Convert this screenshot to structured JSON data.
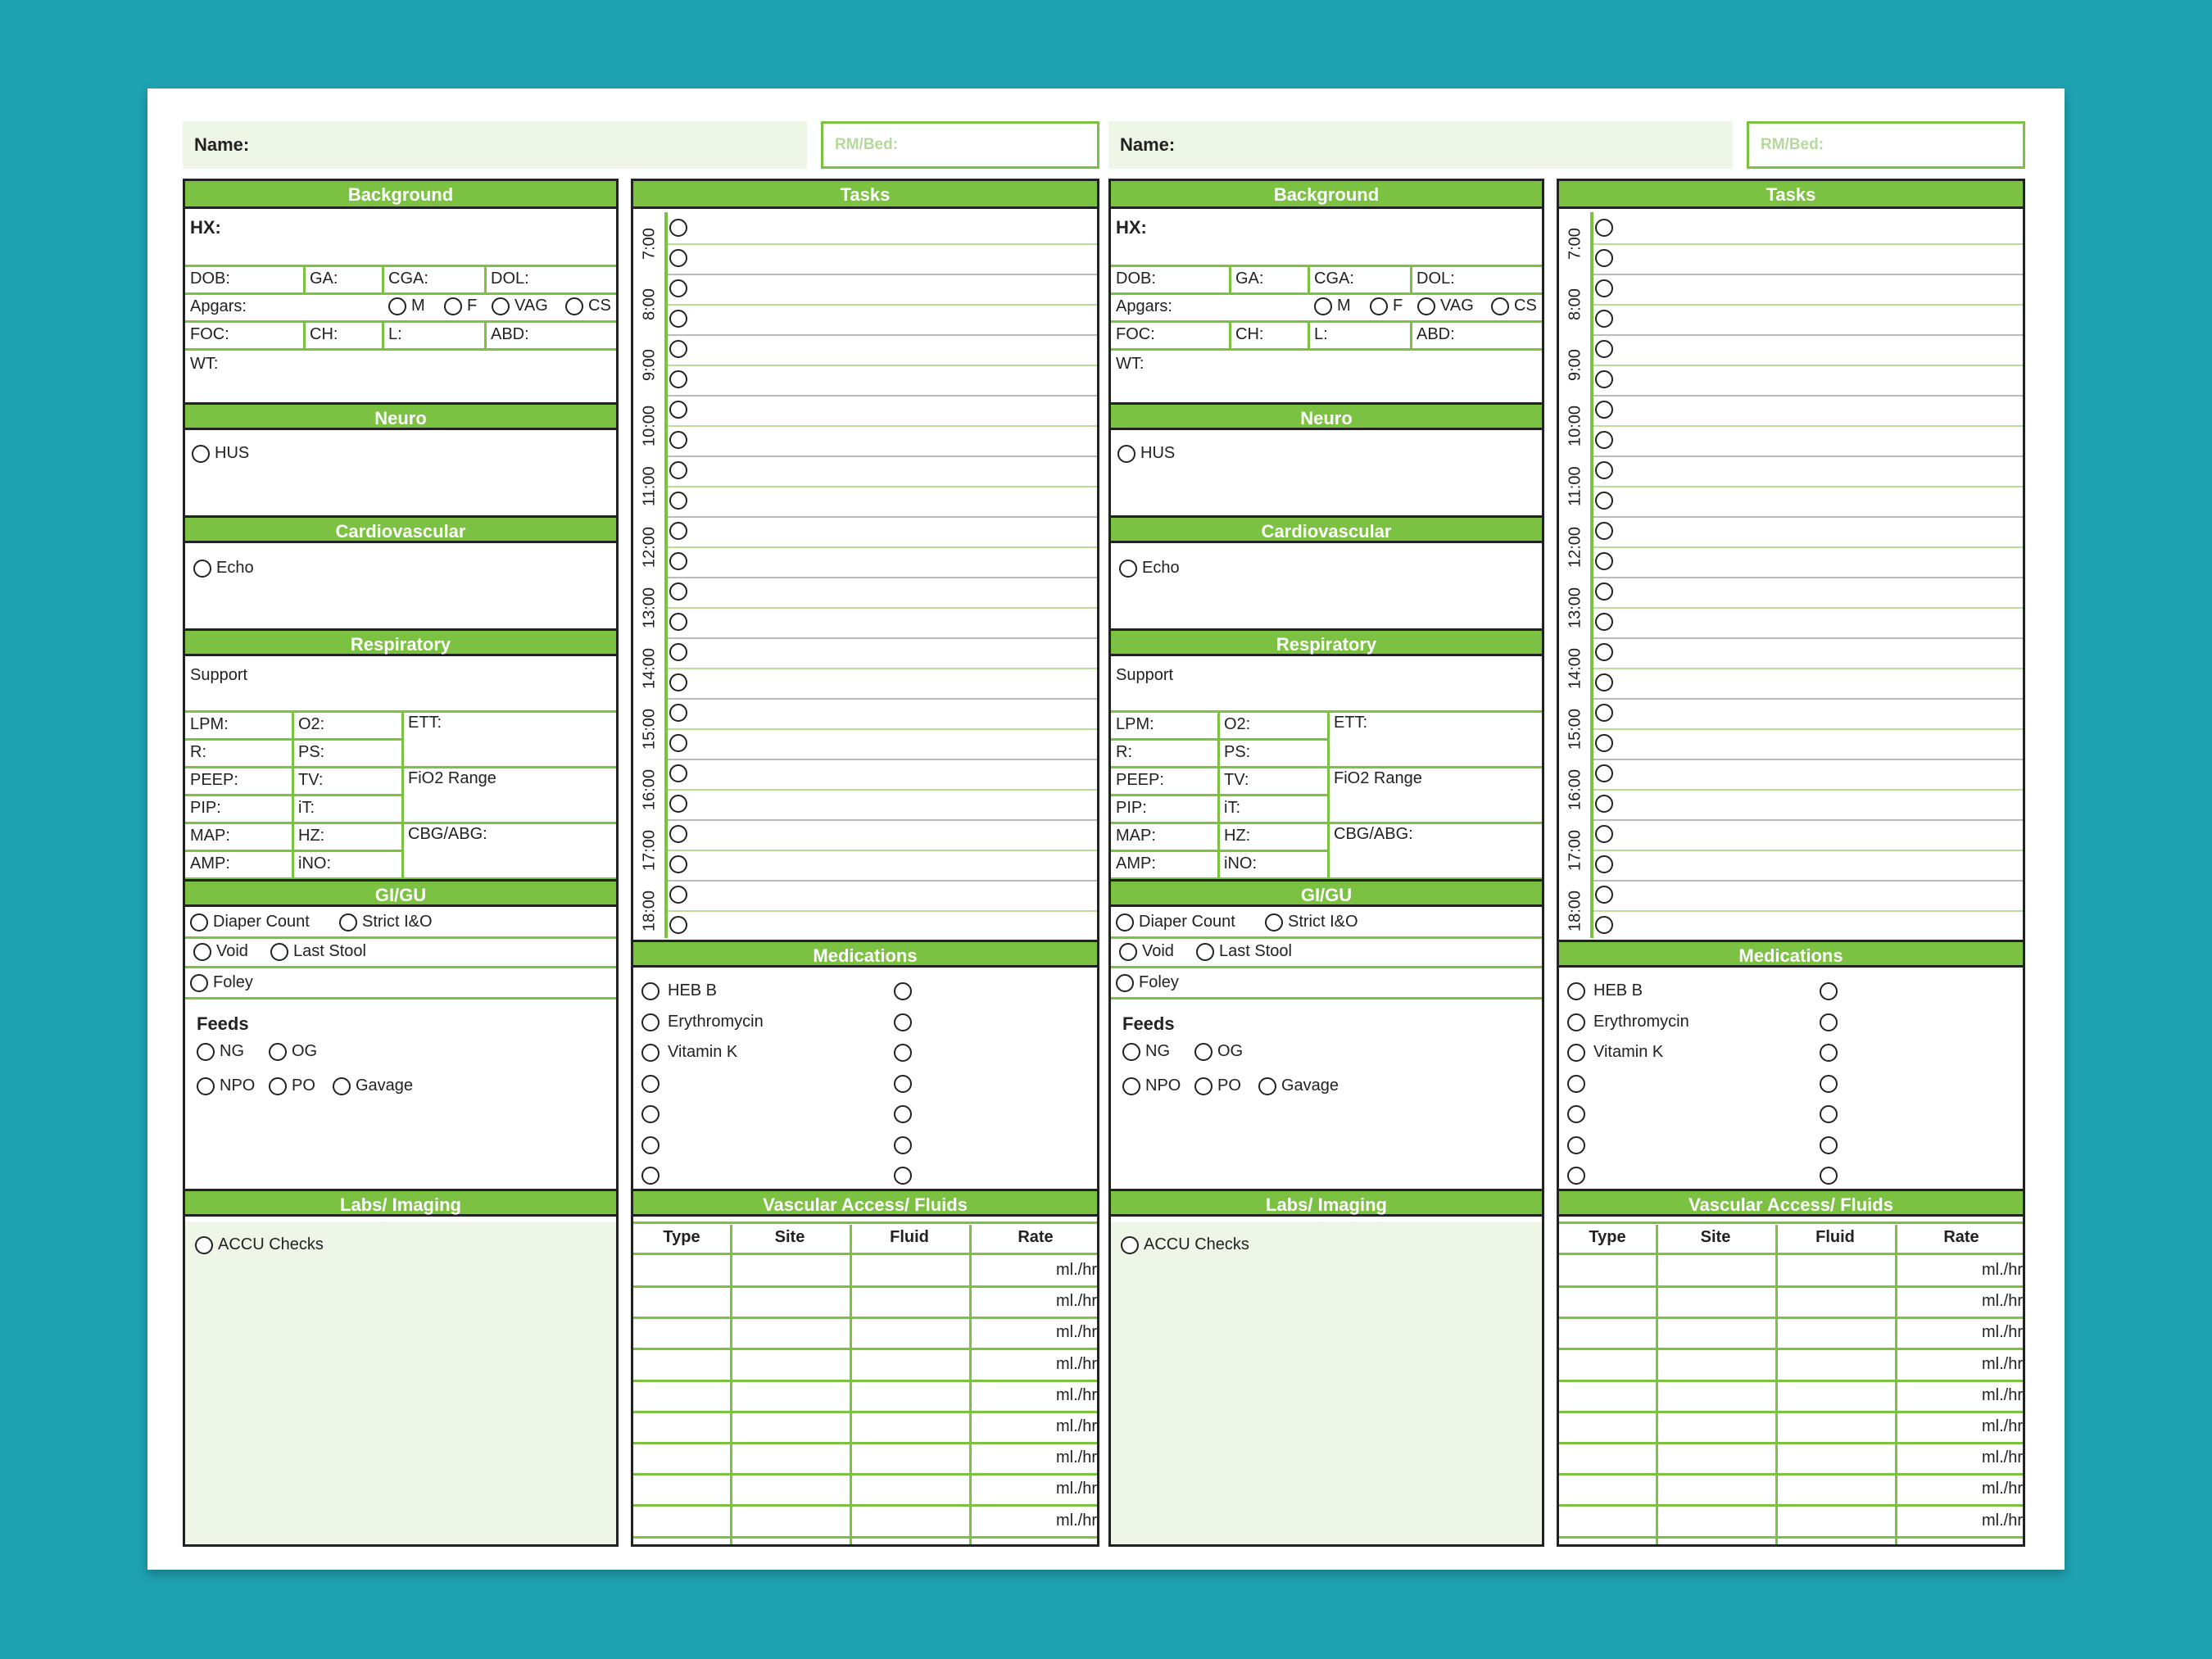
{
  "header": {
    "name_label": "Name:",
    "room_label": "RM/Bed:"
  },
  "background": {
    "title": "Background",
    "hx": "HX:",
    "dob": "DOB:",
    "ga": "GA:",
    "cga": "CGA:",
    "dol": "DOL:",
    "apgars": "Apgars:",
    "m": "M",
    "f": "F",
    "vag": "VAG",
    "cs": "CS",
    "foc": "FOC:",
    "ch": "CH:",
    "l": "L:",
    "abd": "ABD:",
    "wt": "WT:"
  },
  "neuro": {
    "title": "Neuro",
    "hus": "HUS"
  },
  "cardio": {
    "title": "Cardiovascular",
    "echo": "Echo"
  },
  "resp": {
    "title": "Respiratory",
    "support": "Support",
    "lpm": "LPM:",
    "o2": "O2:",
    "ett": "ETT:",
    "r": "R:",
    "ps": "PS:",
    "peep": "PEEP:",
    "tv": "TV:",
    "fio2": "FiO2 Range",
    "pip": "PIP:",
    "it": "iT:",
    "map": "MAP:",
    "hz": "HZ:",
    "cbg": "CBG/ABG:",
    "amp": "AMP:",
    "ino": "iNO:"
  },
  "gigu": {
    "title": "GI/GU",
    "diaper": "Diaper Count",
    "strict": "Strict I&O",
    "void": "Void",
    "stool": "Last Stool",
    "foley": "Foley",
    "feeds": "Feeds",
    "ng": "NG",
    "og": "OG",
    "npo": "NPO",
    "po": "PO",
    "gavage": "Gavage"
  },
  "labs": {
    "title": "Labs/ Imaging",
    "accu": "ACCU Checks"
  },
  "tasks": {
    "title": "Tasks",
    "hours": [
      "7:00",
      "8:00",
      "9:00",
      "10:00",
      "11:00",
      "12:00",
      "13:00",
      "14:00",
      "15:00",
      "16:00",
      "17:00",
      "18:00"
    ]
  },
  "meds": {
    "title": "Medications",
    "items": [
      "HEB B",
      "Erythromycin",
      "Vitamin K"
    ]
  },
  "vascular": {
    "title": "Vascular Access/ Fluids",
    "cols": [
      "Type",
      "Site",
      "Fluid",
      "Rate"
    ],
    "unit": "ml./hr"
  }
}
